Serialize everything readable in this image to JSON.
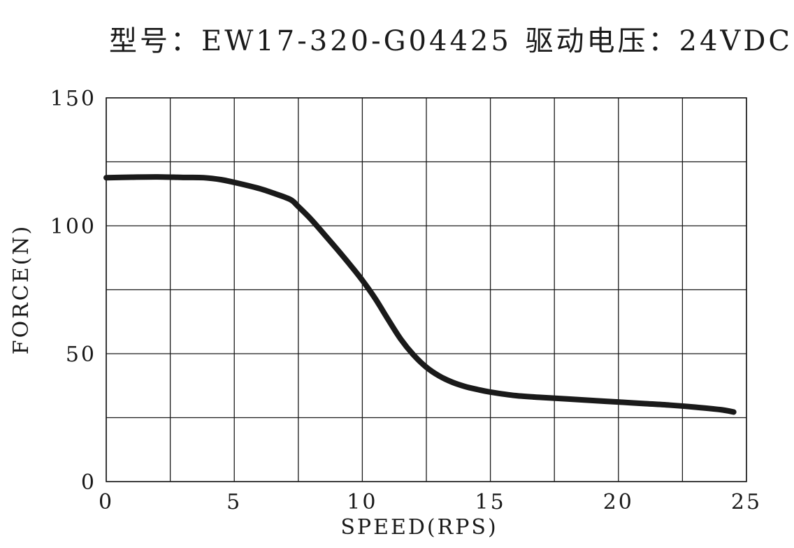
{
  "chart_data": {
    "type": "line",
    "model_label": "型号：EW17-320-G04425",
    "voltage_label": "驱动电压：24VDC",
    "xlabel": "SPEED(RPS)",
    "ylabel": "FORCE(N)",
    "xlim": [
      0,
      25
    ],
    "ylim": [
      0,
      150
    ],
    "x_ticks": [
      0,
      5,
      10,
      15,
      20,
      25
    ],
    "x_tick_labels": [
      "0",
      "5",
      "10",
      "15",
      "20",
      "25"
    ],
    "y_ticks": [
      0,
      50,
      100,
      150
    ],
    "y_tick_labels": [
      "0",
      "50",
      "100",
      "150"
    ],
    "x_grid": [
      0,
      2.5,
      5,
      7.5,
      10,
      12.5,
      15,
      17.5,
      20,
      22.5,
      25
    ],
    "y_grid": [
      0,
      25,
      50,
      75,
      100,
      125,
      150
    ],
    "grid": true,
    "legend": "none",
    "series": [
      {
        "color": "#1a1a1a",
        "x": [
          0,
          1,
          2,
          3,
          3.8,
          4.5,
          5.2,
          6,
          6.6,
          7.2,
          7.5,
          8,
          8.5,
          9,
          9.5,
          10,
          10.5,
          11,
          11.5,
          12,
          12.5,
          13,
          13.5,
          14,
          14.5,
          15,
          16,
          17,
          18,
          19,
          20,
          21,
          22,
          23,
          24,
          24.5
        ],
        "y": [
          118.8,
          119,
          119.1,
          118.9,
          118.8,
          118,
          116.5,
          114.5,
          112.5,
          110.2,
          107.5,
          102.5,
          96.8,
          91,
          85,
          78.7,
          71.6,
          63.5,
          55.7,
          49.5,
          44.7,
          41.3,
          38.9,
          37.2,
          36,
          35,
          33.6,
          32.9,
          32.3,
          31.7,
          31.1,
          30.5,
          29.9,
          29.1,
          28.1,
          27.2
        ]
      }
    ]
  }
}
